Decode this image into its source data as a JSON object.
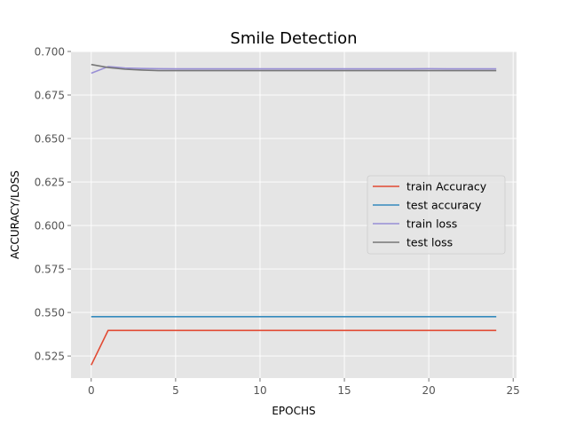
{
  "chart_data": {
    "type": "line",
    "title": "Smile Detection",
    "xlabel": "EPOCHS",
    "ylabel": "ACCURACY/LOSS",
    "xlim": [
      -1.2,
      25.2
    ],
    "ylim": [
      0.5123,
      0.7
    ],
    "xticks": [
      0,
      5,
      10,
      15,
      20,
      25
    ],
    "yticks": [
      0.525,
      0.55,
      0.575,
      0.6,
      0.625,
      0.65,
      0.675,
      0.7
    ],
    "ytick_labels": [
      "0.525",
      "0.550",
      "0.575",
      "0.600",
      "0.625",
      "0.650",
      "0.675",
      "0.700"
    ],
    "grid": true,
    "legend_position": "center-right",
    "x": [
      0,
      1,
      2,
      3,
      4,
      5,
      6,
      7,
      8,
      9,
      10,
      11,
      12,
      13,
      14,
      15,
      16,
      17,
      18,
      19,
      20,
      21,
      22,
      23,
      24
    ],
    "series": [
      {
        "name": " train Accuracy",
        "color": "#E24A33",
        "values": [
          0.5198,
          0.5397,
          0.5397,
          0.5397,
          0.5397,
          0.5397,
          0.5397,
          0.5397,
          0.5397,
          0.5397,
          0.5397,
          0.5397,
          0.5397,
          0.5397,
          0.5397,
          0.5397,
          0.5397,
          0.5397,
          0.5397,
          0.5397,
          0.5397,
          0.5397,
          0.5397,
          0.5397,
          0.5397
        ]
      },
      {
        "name": "test accuracy",
        "color": "#348ABD",
        "values": [
          0.5476,
          0.5476,
          0.5476,
          0.5476,
          0.5476,
          0.5476,
          0.5476,
          0.5476,
          0.5476,
          0.5476,
          0.5476,
          0.5476,
          0.5476,
          0.5476,
          0.5476,
          0.5476,
          0.5476,
          0.5476,
          0.5476,
          0.5476,
          0.5476,
          0.5476,
          0.5476,
          0.5476,
          0.5476
        ]
      },
      {
        "name": " train loss",
        "color": "#988ED5",
        "values": [
          0.6875,
          0.6913,
          0.6905,
          0.6902,
          0.6901,
          0.69,
          0.69,
          0.69,
          0.69,
          0.69,
          0.69,
          0.69,
          0.69,
          0.69,
          0.69,
          0.69,
          0.69,
          0.69,
          0.69,
          0.69,
          0.6901,
          0.69,
          0.69,
          0.69,
          0.69
        ]
      },
      {
        "name": " test loss",
        "color": "#777777",
        "values": [
          0.6925,
          0.6908,
          0.6898,
          0.6893,
          0.689,
          0.689,
          0.689,
          0.689,
          0.689,
          0.689,
          0.689,
          0.689,
          0.689,
          0.689,
          0.689,
          0.689,
          0.689,
          0.689,
          0.689,
          0.689,
          0.689,
          0.689,
          0.689,
          0.689,
          0.689
        ]
      }
    ],
    "colors": {
      "plot_background": "#E5E5E5",
      "grid": "#FFFFFF"
    }
  }
}
